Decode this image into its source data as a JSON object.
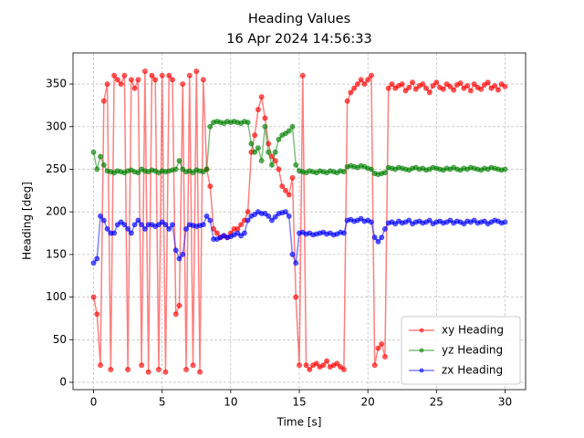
{
  "chart_data": {
    "type": "line",
    "title": "Heading Values",
    "subtitle": "16 Apr 2024 14:56:33",
    "x_label": "Time [s]",
    "y_label": "Heading [deg]",
    "xlim": [
      -1.5,
      31.5
    ],
    "ylim": [
      -8.6,
      386.5
    ],
    "xticks": [
      0,
      5,
      10,
      15,
      20,
      25,
      30
    ],
    "yticks": [
      0,
      50,
      100,
      150,
      200,
      250,
      300,
      350
    ],
    "grid": true,
    "legend_position": "lower right",
    "x": [
      0,
      0.25,
      0.5,
      0.75,
      1,
      1.25,
      1.5,
      1.75,
      2,
      2.25,
      2.5,
      2.75,
      3,
      3.25,
      3.5,
      3.75,
      4,
      4.25,
      4.5,
      4.75,
      5,
      5.25,
      5.5,
      5.75,
      6,
      6.25,
      6.5,
      6.75,
      7,
      7.25,
      7.5,
      7.75,
      8,
      8.25,
      8.5,
      8.75,
      9,
      9.25,
      9.5,
      9.75,
      10,
      10.25,
      10.5,
      10.75,
      11,
      11.25,
      11.5,
      11.75,
      12,
      12.25,
      12.5,
      12.75,
      13,
      13.25,
      13.5,
      13.75,
      14,
      14.25,
      14.5,
      14.75,
      15,
      15.25,
      15.5,
      15.75,
      16,
      16.25,
      16.5,
      16.75,
      17,
      17.25,
      17.5,
      17.75,
      18,
      18.25,
      18.5,
      18.75,
      19,
      19.25,
      19.5,
      19.75,
      20,
      20.25,
      20.5,
      20.75,
      21,
      21.25,
      21.5,
      21.75,
      22,
      22.25,
      22.5,
      22.75,
      23,
      23.25,
      23.5,
      23.75,
      24,
      24.25,
      24.5,
      24.75,
      25,
      25.25,
      25.5,
      25.75,
      26,
      26.25,
      26.5,
      26.75,
      27,
      27.25,
      27.5,
      27.75,
      28,
      28.25,
      28.5,
      28.75,
      29,
      29.25,
      29.5,
      29.75,
      30
    ],
    "series": [
      {
        "name": "xy Heading",
        "color": "red",
        "values": [
          100,
          80,
          20,
          330,
          350,
          15,
          360,
          355,
          350,
          360,
          15,
          355,
          345,
          355,
          20,
          365,
          12,
          360,
          355,
          15,
          360,
          12,
          360,
          355,
          80,
          90,
          350,
          15,
          360,
          20,
          365,
          12,
          355,
          250,
          230,
          180,
          175,
          170,
          172,
          170,
          175,
          180,
          180,
          185,
          190,
          200,
          270,
          290,
          320,
          335,
          310,
          280,
          265,
          260,
          250,
          230,
          225,
          220,
          240,
          100,
          20,
          360,
          20,
          15,
          20,
          22,
          18,
          20,
          25,
          18,
          20,
          22,
          18,
          15,
          330,
          340,
          345,
          350,
          355,
          350,
          355,
          360,
          20,
          40,
          45,
          30,
          345,
          350,
          345,
          348,
          350,
          342,
          346,
          352,
          344,
          348,
          350,
          345,
          340,
          348,
          352,
          346,
          344,
          350,
          347,
          343,
          349,
          351,
          345,
          348,
          342,
          350,
          346,
          344,
          349,
          352,
          345,
          348,
          343,
          350,
          347
        ]
      },
      {
        "name": "yz Heading",
        "color": "green",
        "values": [
          270,
          250,
          265,
          255,
          248,
          247,
          246,
          248,
          247,
          246,
          248,
          249,
          247,
          246,
          250,
          248,
          247,
          249,
          248,
          246,
          248,
          247,
          248,
          249,
          250,
          260,
          250,
          247,
          248,
          246,
          249,
          248,
          247,
          250,
          300,
          305,
          306,
          305,
          304,
          306,
          305,
          306,
          305,
          304,
          306,
          305,
          280,
          270,
          275,
          260,
          300,
          270,
          255,
          270,
          285,
          290,
          292,
          295,
          300,
          255,
          248,
          247,
          246,
          248,
          247,
          246,
          248,
          247,
          246,
          248,
          247,
          246,
          248,
          247,
          253,
          254,
          253,
          252,
          254,
          253,
          251,
          250,
          245,
          244,
          245,
          246,
          252,
          251,
          250,
          252,
          251,
          250,
          249,
          251,
          252,
          250,
          251,
          249,
          250,
          252,
          251,
          250,
          249,
          251,
          250,
          252,
          250,
          249,
          251,
          250,
          252,
          251,
          250,
          249,
          251,
          250,
          252,
          251,
          250,
          249,
          250
        ]
      },
      {
        "name": "zx Heading",
        "color": "blue",
        "values": [
          140,
          145,
          195,
          190,
          180,
          175,
          175,
          185,
          188,
          185,
          180,
          175,
          185,
          190,
          185,
          180,
          185,
          185,
          183,
          185,
          188,
          185,
          180,
          185,
          155,
          145,
          150,
          180,
          185,
          184,
          183,
          184,
          185,
          195,
          190,
          168,
          168,
          170,
          172,
          170,
          171,
          173,
          175,
          172,
          175,
          190,
          195,
          197,
          200,
          198,
          198,
          195,
          190,
          194,
          198,
          199,
          200,
          195,
          150,
          140,
          175,
          176,
          174,
          175,
          173,
          174,
          175,
          176,
          174,
          175,
          173,
          174,
          176,
          175,
          190,
          191,
          189,
          190,
          192,
          189,
          190,
          188,
          170,
          165,
          170,
          180,
          187,
          188,
          186,
          189,
          187,
          188,
          190,
          186,
          188,
          189,
          187,
          188,
          190,
          186,
          188,
          189,
          187,
          188,
          190,
          187,
          189,
          188,
          186,
          189,
          188,
          190,
          187,
          188,
          189,
          186,
          188,
          190,
          189,
          187,
          188
        ]
      }
    ]
  }
}
